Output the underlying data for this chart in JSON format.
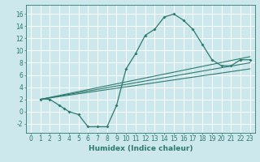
{
  "title": "",
  "xlabel": "Humidex (Indice chaleur)",
  "bg_color": "#cde8ec",
  "grid_color": "#ffffff",
  "line_color": "#2d7a6e",
  "xlim": [
    -0.5,
    23.5
  ],
  "ylim": [
    -3.5,
    17.5
  ],
  "xticks": [
    0,
    1,
    2,
    3,
    4,
    5,
    6,
    7,
    8,
    9,
    10,
    11,
    12,
    13,
    14,
    15,
    16,
    17,
    18,
    19,
    20,
    21,
    22,
    23
  ],
  "yticks": [
    -2,
    0,
    2,
    4,
    6,
    8,
    10,
    12,
    14,
    16
  ],
  "curve1_x": [
    1,
    2,
    3,
    3.5,
    4,
    5,
    6,
    7,
    8,
    9,
    10,
    11,
    12,
    13,
    14,
    15,
    16,
    17,
    18,
    19,
    20,
    21,
    22,
    23
  ],
  "curve1_y": [
    2,
    2,
    1,
    0.5,
    0,
    -0.5,
    -2.5,
    -2.5,
    -2.5,
    1,
    7,
    9.5,
    12.5,
    13.5,
    15.5,
    16,
    15.0,
    13.5,
    11,
    8.5,
    7.5,
    7.5,
    8.5,
    8.5
  ],
  "line1_x": [
    1,
    23
  ],
  "line1_y": [
    2,
    7.0
  ],
  "line2_x": [
    1,
    23
  ],
  "line2_y": [
    2,
    8.0
  ],
  "line3_x": [
    1,
    23
  ],
  "line3_y": [
    2,
    9.0
  ],
  "tick_fontsize": 5.5,
  "xlabel_fontsize": 6.5
}
